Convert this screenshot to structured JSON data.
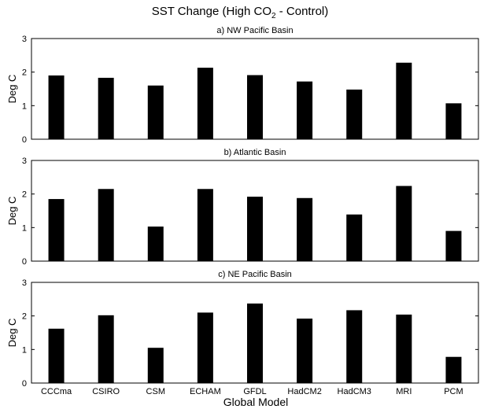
{
  "figure": {
    "title_prefix": "SST Change  (High CO",
    "title_sub": "2",
    "title_suffix": " - Control)",
    "xlabel": "Global Model"
  },
  "chart_data": [
    {
      "type": "bar",
      "title": "a) NW Pacific  Basin",
      "ylabel": "Deg C",
      "xlabel": "",
      "ylim": [
        0,
        3
      ],
      "yticks": [
        "0",
        "1",
        "2",
        "3"
      ],
      "categories": [
        "CCCma",
        "CSIRO",
        "CSM",
        "ECHAM",
        "GFDL",
        "HadCM2",
        "HadCM3",
        "MRI",
        "PCM"
      ],
      "values": [
        1.9,
        1.83,
        1.6,
        2.13,
        1.91,
        1.72,
        1.48,
        2.28,
        1.07
      ],
      "bar_color": "#000000"
    },
    {
      "type": "bar",
      "title": "b) Atlantic Basin",
      "ylabel": "Deg C",
      "xlabel": "",
      "ylim": [
        0,
        3
      ],
      "yticks": [
        "0",
        "1",
        "2",
        "3"
      ],
      "categories": [
        "CCCma",
        "CSIRO",
        "CSM",
        "ECHAM",
        "GFDL",
        "HadCM2",
        "HadCM3",
        "MRI",
        "PCM"
      ],
      "values": [
        1.85,
        2.15,
        1.03,
        2.15,
        1.92,
        1.88,
        1.39,
        2.24,
        0.9
      ],
      "bar_color": "#000000"
    },
    {
      "type": "bar",
      "title": "c) NE Pacific  Basin",
      "ylabel": "Deg C",
      "xlabel": "Global Model",
      "ylim": [
        0,
        3
      ],
      "yticks": [
        "0",
        "1",
        "2",
        "3"
      ],
      "categories": [
        "CCCma",
        "CSIRO",
        "CSM",
        "ECHAM",
        "GFDL",
        "HadCM2",
        "HadCM3",
        "MRI",
        "PCM"
      ],
      "values": [
        1.62,
        2.02,
        1.05,
        2.1,
        2.37,
        1.92,
        2.17,
        2.04,
        0.78
      ],
      "bar_color": "#000000"
    }
  ]
}
